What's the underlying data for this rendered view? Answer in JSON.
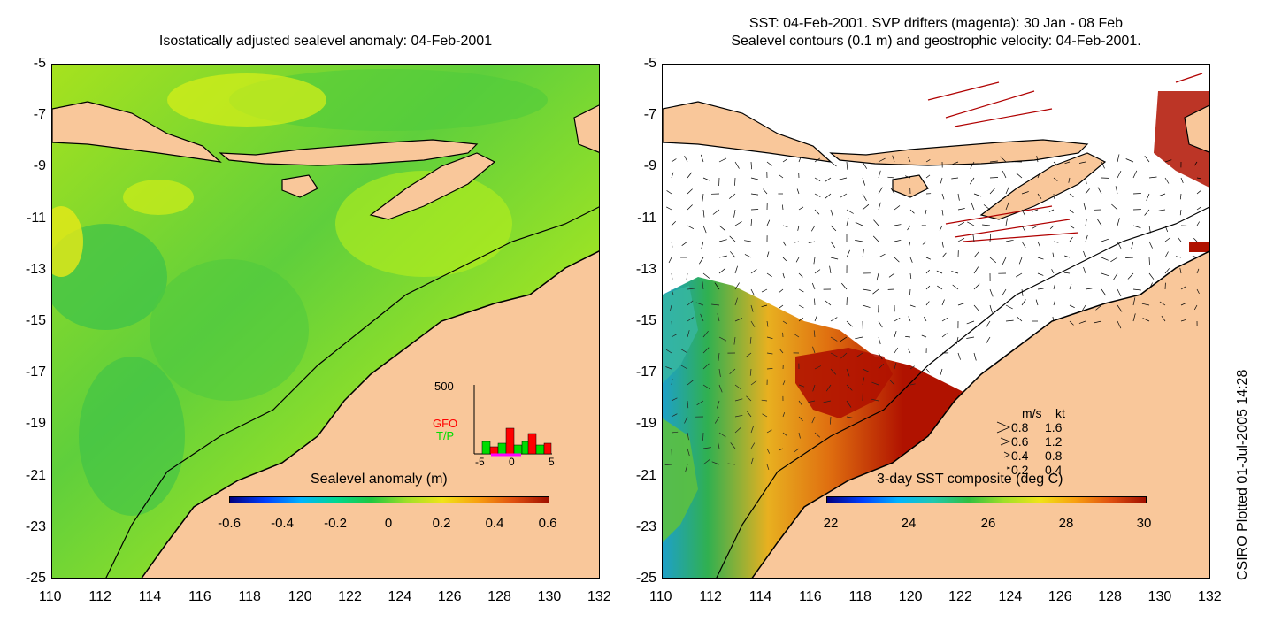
{
  "left_panel": {
    "title": "Isostatically adjusted sealevel anomaly: 04-Feb-2001",
    "y_ticks": [
      "-5",
      "-7",
      "-9",
      "-11",
      "-13",
      "-15",
      "-17",
      "-19",
      "-21",
      "-23",
      "-25"
    ],
    "x_ticks": [
      "110",
      "112",
      "114",
      "116",
      "118",
      "120",
      "122",
      "124",
      "126",
      "128",
      "130",
      "132"
    ],
    "colorbar": {
      "title": "Sealevel anomaly (m)",
      "labels": [
        "-0.6",
        "-0.4",
        "-0.2",
        "0",
        "0.2",
        "0.4",
        "0.6"
      ],
      "range": [
        -0.6,
        0.6
      ]
    },
    "inset": {
      "max_label": "500",
      "series_1": "GFO",
      "series_2": "T/P",
      "x_labels": [
        "-5",
        "0",
        "5"
      ],
      "colors": {
        "gfo": "#ff0000",
        "tp": "#00dd00",
        "marker": "#ff00ff"
      }
    }
  },
  "right_panel": {
    "title_line1": "SST: 04-Feb-2001. SVP drifters (magenta): 30 Jan - 08 Feb",
    "title_line2": "Sealevel contours (0.1 m) and geostrophic velocity: 04-Feb-2001.",
    "y_ticks": [
      "-5",
      "-7",
      "-9",
      "-11",
      "-13",
      "-15",
      "-17",
      "-19",
      "-21",
      "-23",
      "-25"
    ],
    "x_ticks": [
      "110",
      "112",
      "114",
      "116",
      "118",
      "120",
      "122",
      "124",
      "126",
      "128",
      "130",
      "132"
    ],
    "velocity_legend": {
      "header_ms": "m/s",
      "header_kt": "kt",
      "rows": [
        {
          "ms": "0.8",
          "kt": "1.6"
        },
        {
          "ms": "0.6",
          "kt": "1.2"
        },
        {
          "ms": "0.4",
          "kt": "0.8"
        },
        {
          "ms": "0.2",
          "kt": "0.4"
        }
      ]
    },
    "colorbar": {
      "title": "3-day SST composite (deg C)",
      "labels": [
        "22",
        "24",
        "26",
        "28",
        "30"
      ],
      "range": [
        22,
        30
      ]
    }
  },
  "credit": "CSIRO Plotted 01-Jul-2005 14:28",
  "colors": {
    "land": "#f9c79a",
    "ocean_green": "#6fd23a",
    "ocean_yellow": "#c8f01e",
    "sst_hot": "#b01200",
    "sst_warm": "#e8850f"
  }
}
